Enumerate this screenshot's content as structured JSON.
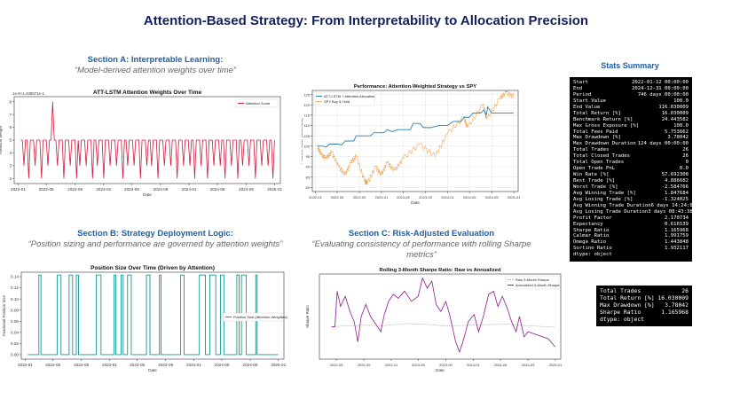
{
  "title": "Attention-Based Strategy: From Interpretability to Allocation Precision",
  "sections": {
    "a": {
      "heading": "Section A: Interpretable Learning:",
      "subtitle": "“Model-derived attention weights over time”"
    },
    "b": {
      "heading": "Section B: Strategy Deployment Logic:",
      "subtitle": "“Position sizing and performance are governed by attention weights”"
    },
    "c": {
      "heading": "Section C: Risk-Adjusted Evaluation",
      "subtitle_line1": "“Evaluating consistency of performance with rolling Sharpe",
      "subtitle_line2": "metrics”"
    }
  },
  "stats_summary": {
    "heading": "Stats Summary",
    "rows": [
      [
        "Start",
        "2022-01-12 00:00:00"
      ],
      [
        "End",
        "2024-12-31 00:00:00"
      ],
      [
        "Period",
        "746 days 00:00:00"
      ],
      [
        "Start Value",
        "100.0"
      ],
      [
        "End Value",
        "116.030009"
      ],
      [
        "Total Return [%]",
        "16.030009"
      ],
      [
        "Benchmark Return [%]",
        "24.443582"
      ],
      [
        "Max Gross Exposure [%]",
        "100.0"
      ],
      [
        "Total Fees Paid",
        "5.753662"
      ],
      [
        "Max Drawdown [%]",
        "3.78042"
      ],
      [
        "Max Drawdown Duration",
        "124 days 00:00:00"
      ],
      [
        "Total Trades",
        "26"
      ],
      [
        "Total Closed Trades",
        "26"
      ],
      [
        "Total Open Trades",
        "0"
      ],
      [
        "Open Trade PnL",
        "0.0"
      ],
      [
        "Win Rate [%]",
        "57.692308"
      ],
      [
        "Best Trade [%]",
        "4.886682"
      ],
      [
        "Worst Trade [%]",
        "-2.584766"
      ],
      [
        "Avg Winning Trade [%]",
        "1.847684"
      ],
      [
        "Avg Losing Trade [%]",
        "-1.324025"
      ],
      [
        "Avg Winning Trade Duration",
        "6 days 14:24:00"
      ],
      [
        "Avg Losing Trade Duration",
        "3 days 08:43:38.181818181"
      ],
      [
        "Profit Factor",
        "2.170734"
      ],
      [
        "Expectancy",
        "0.616539"
      ],
      [
        "Sharpe Ratio",
        "1.165968"
      ],
      [
        "Calmar Ratio",
        "1.991759"
      ],
      [
        "Omega Ratio",
        "1.443848"
      ],
      [
        "Sortino Ratio",
        "1.932117"
      ],
      [
        "dtype: object",
        ""
      ]
    ]
  },
  "key_stats": {
    "rows": [
      [
        "Total Trades",
        "26"
      ],
      [
        "Total Return [%]",
        "16.030009"
      ],
      [
        "Max Drawdown [%]",
        "3.78042"
      ],
      [
        "Sharpe Ratio",
        "1.165968"
      ],
      [
        "dtype: object",
        ""
      ]
    ]
  },
  "colors": {
    "title": "#13205b",
    "section_heading": "#1f5fa6",
    "attention": "#d11b3c",
    "strategy": "#2f7db3",
    "spy": "#f0922b",
    "position": "#13978f",
    "sharpe_raw": "#9aa0a6",
    "sharpe_ann": "#8e1a8c"
  },
  "chart_data": [
    {
      "id": "attention",
      "type": "line",
      "title": "ATT-LSTM Attention Weights Over Time",
      "xlabel": "Date",
      "ylabel": "Attention Weight",
      "offset_label": "1e-8+1.428571e-1",
      "legend": [
        "Attention Score"
      ],
      "x_ticks": [
        "2022-01",
        "2022-05",
        "2022-09",
        "2023-01",
        "2023-05",
        "2023-09",
        "2024-01",
        "2024-05",
        "2024-09",
        "2025-01"
      ],
      "y_ticks": [
        "2",
        "3",
        "4",
        "5",
        "6",
        "7",
        "8"
      ],
      "ylim": [
        1.6,
        8.4
      ],
      "x_range": [
        "2021-12-15",
        "2025-01-25"
      ],
      "series": [
        {
          "name": "Attention Score",
          "values": [
            5,
            5,
            3,
            5,
            5,
            2,
            5,
            5,
            5,
            3,
            5,
            5,
            5,
            2,
            5,
            5,
            5,
            3,
            5,
            5,
            8,
            5,
            5,
            3,
            5,
            5,
            5,
            2,
            5,
            5,
            5,
            3,
            5,
            5,
            5,
            2,
            5,
            3,
            5,
            5,
            5,
            3,
            5,
            5,
            5,
            2,
            5,
            5,
            3,
            5,
            5,
            5,
            2,
            5,
            5,
            5,
            3,
            5,
            5,
            5,
            3,
            5,
            5,
            5,
            2,
            5,
            5,
            3,
            5,
            5,
            5,
            3,
            5,
            5,
            5,
            2,
            5,
            5,
            5,
            3,
            5,
            5,
            3,
            5,
            5,
            5,
            2,
            5,
            5,
            5,
            3,
            5,
            5,
            5,
            3,
            5,
            5,
            5,
            2,
            5,
            5,
            5,
            3,
            5,
            5,
            5,
            3,
            5,
            5,
            2,
            5,
            5,
            5,
            3,
            5,
            5,
            5,
            2,
            5,
            5,
            5,
            3,
            5,
            5,
            5,
            3,
            5,
            5,
            2,
            5,
            5,
            5,
            3,
            5,
            5,
            5,
            2,
            5,
            5,
            3,
            5,
            5,
            5,
            3,
            5,
            5,
            5,
            2,
            5,
            5,
            5,
            3,
            5,
            5,
            5,
            3,
            5,
            5,
            2,
            5
          ]
        }
      ]
    },
    {
      "id": "performance",
      "type": "line",
      "title": "Performance: Attention-Weighted Strategy vs SPY",
      "xlabel": "Date",
      "ylabel": "Portfolio Value (Start=100)",
      "legend": [
        "ATT-LSTM + Attention Allocation",
        "SPY Buy & Hold"
      ],
      "x_ticks": [
        "2022-01",
        "2022-05",
        "2022-09",
        "2023-01",
        "2023-05",
        "2023-09",
        "2024-01",
        "2024-05",
        "2024-09",
        "2025-01"
      ],
      "y_ticks": [
        "80",
        "85",
        "90",
        "95",
        "100",
        "105",
        "110",
        "115",
        "120",
        "125"
      ],
      "ylim": [
        78,
        127
      ],
      "x_range": [
        "2021-12-15",
        "2025-01-25"
      ],
      "series": [
        {
          "name": "ATT-LSTM + Attention Allocation",
          "points": [
            [
              "2022-01-12",
              100
            ],
            [
              "2022-02-15",
              100
            ],
            [
              "2022-03-01",
              99.5
            ],
            [
              "2022-03-20",
              101
            ],
            [
              "2022-05-10",
              101
            ],
            [
              "2022-05-25",
              100.5
            ],
            [
              "2022-06-15",
              102.5
            ],
            [
              "2022-08-01",
              102.5
            ],
            [
              "2022-08-15",
              105
            ],
            [
              "2022-11-01",
              105
            ],
            [
              "2022-11-20",
              106.5
            ],
            [
              "2023-01-15",
              106.5
            ],
            [
              "2023-02-01",
              108
            ],
            [
              "2023-03-01",
              107
            ],
            [
              "2023-04-01",
              108
            ],
            [
              "2023-06-10",
              108
            ],
            [
              "2023-06-25",
              111
            ],
            [
              "2023-08-01",
              111
            ],
            [
              "2023-08-20",
              109
            ],
            [
              "2023-10-01",
              109
            ],
            [
              "2023-11-15",
              110
            ],
            [
              "2024-01-01",
              110
            ],
            [
              "2024-02-01",
              112
            ],
            [
              "2024-03-15",
              112
            ],
            [
              "2024-04-01",
              114
            ],
            [
              "2024-05-01",
              114
            ],
            [
              "2024-05-20",
              116
            ],
            [
              "2024-07-01",
              116
            ],
            [
              "2024-07-20",
              117.5
            ],
            [
              "2024-08-01",
              115
            ],
            [
              "2024-08-10",
              119
            ],
            [
              "2024-09-01",
              116
            ],
            [
              "2024-12-31",
              116
            ]
          ]
        },
        {
          "name": "SPY Buy & Hold",
          "points": [
            [
              "2022-01-12",
              100
            ],
            [
              "2022-02-01",
              96
            ],
            [
              "2022-03-01",
              94
            ],
            [
              "2022-04-01",
              97
            ],
            [
              "2022-05-10",
              90
            ],
            [
              "2022-06-15",
              86
            ],
            [
              "2022-07-15",
              92
            ],
            [
              "2022-08-15",
              95
            ],
            [
              "2022-09-30",
              83
            ],
            [
              "2022-10-15",
              82
            ],
            [
              "2022-11-30",
              90
            ],
            [
              "2022-12-31",
              86
            ],
            [
              "2023-02-01",
              92
            ],
            [
              "2023-03-15",
              88
            ],
            [
              "2023-05-01",
              94
            ],
            [
              "2023-07-31",
              101
            ],
            [
              "2023-10-25",
              95
            ],
            [
              "2023-12-31",
              106
            ],
            [
              "2024-03-31",
              114
            ],
            [
              "2024-04-20",
              109
            ],
            [
              "2024-07-15",
              120
            ],
            [
              "2024-08-05",
              113
            ],
            [
              "2024-10-15",
              123
            ],
            [
              "2024-11-20",
              126
            ],
            [
              "2024-12-31",
              124
            ]
          ]
        }
      ]
    },
    {
      "id": "position",
      "type": "line",
      "title": "Position Size Over Time (Driven by Attention)",
      "xlabel": "Date",
      "ylabel": "Fractional Position Size",
      "legend": [
        "Position Size (Attention-Weighted)"
      ],
      "x_ticks": [
        "2022-01",
        "2022-05",
        "2022-09",
        "2023-01",
        "2023-05",
        "2023-09",
        "2024-01",
        "2024-05",
        "2024-09",
        "2025-01"
      ],
      "y_ticks": [
        "0.00",
        "0.02",
        "0.04",
        "0.06",
        "0.08",
        "0.10",
        "0.12",
        "0.14"
      ],
      "ylim": [
        -0.008,
        0.148
      ],
      "x_range": [
        "2021-12-15",
        "2025-01-25"
      ],
      "series": [
        {
          "name": "Position Size (Attention-Weighted)",
          "high": 0.1429,
          "intervals": [
            [
              "2022-03-01",
              "2022-03-10"
            ],
            [
              "2022-05-20",
              "2022-06-05"
            ],
            [
              "2022-07-10",
              "2022-07-25"
            ],
            [
              "2022-08-10",
              "2022-08-20"
            ],
            [
              "2022-11-05",
              "2022-11-25"
            ],
            [
              "2023-01-20",
              "2023-01-28"
            ],
            [
              "2023-02-20",
              "2023-03-01"
            ],
            [
              "2023-03-20",
              "2023-04-05"
            ],
            [
              "2023-06-10",
              "2023-06-25"
            ],
            [
              "2023-08-05",
              "2023-08-12"
            ],
            [
              "2023-11-05",
              "2023-11-20"
            ],
            [
              "2024-01-25",
              "2024-02-20"
            ],
            [
              "2024-03-10",
              "2024-04-05"
            ],
            [
              "2024-04-25",
              "2024-05-10"
            ],
            [
              "2024-07-05",
              "2024-07-15"
            ],
            [
              "2024-07-25",
              "2024-08-15"
            ],
            [
              "2024-09-25",
              "2024-10-01"
            ]
          ]
        }
      ]
    },
    {
      "id": "sharpe",
      "type": "line",
      "title": "Rolling 3-Month Sharpe Ratio: Raw vs Annualized",
      "xlabel": "Date",
      "ylabel": "Sharpe Ratio",
      "legend": [
        "Raw 3-Month Sharpe",
        "Annualized 3-Month Sharpe"
      ],
      "x_ticks": [
        "2022-05",
        "2022-09",
        "2023-01",
        "2023-05",
        "2023-09",
        "2024-01",
        "2024-05",
        "2024-09",
        "2025-01"
      ],
      "ylim": [
        -3.2,
        5.2
      ],
      "x_range": [
        "2022-02-15",
        "2025-01-25"
      ],
      "series": [
        {
          "name": "Raw 3-Month Sharpe",
          "points": [
            [
              "2022-04-10",
              0
            ],
            [
              "2022-06-15",
              0.08
            ],
            [
              "2022-09-01",
              0.15
            ],
            [
              "2022-12-01",
              0.1
            ],
            [
              "2023-03-01",
              0.3
            ],
            [
              "2023-06-01",
              0.25
            ],
            [
              "2023-09-01",
              0.05
            ],
            [
              "2023-12-01",
              0.15
            ],
            [
              "2024-03-01",
              0.2
            ],
            [
              "2024-06-01",
              0.25
            ],
            [
              "2024-09-01",
              0.1
            ],
            [
              "2024-12-31",
              -0.05
            ]
          ]
        },
        {
          "name": "Annualized 3-Month Sharpe",
          "points": [
            [
              "2022-04-10",
              0
            ],
            [
              "2022-04-25",
              0
            ],
            [
              "2022-05-05",
              3.5
            ],
            [
              "2022-05-20",
              2.0
            ],
            [
              "2022-06-10",
              3.0
            ],
            [
              "2022-07-01",
              1.5
            ],
            [
              "2022-07-20",
              0.5
            ],
            [
              "2022-08-05",
              -1.5
            ],
            [
              "2022-08-20",
              1.0
            ],
            [
              "2022-09-10",
              2.2
            ],
            [
              "2022-10-01",
              1.0
            ],
            [
              "2022-11-01",
              0
            ],
            [
              "2022-11-15",
              -0.5
            ],
            [
              "2022-12-01",
              1.2
            ],
            [
              "2022-12-20",
              2.5
            ],
            [
              "2023-01-10",
              3.2
            ],
            [
              "2023-02-01",
              2.8
            ],
            [
              "2023-03-01",
              3.5
            ],
            [
              "2023-04-01",
              2.5
            ],
            [
              "2023-05-01",
              3.0
            ],
            [
              "2023-05-20",
              4.8
            ],
            [
              "2023-06-10",
              3.8
            ],
            [
              "2023-07-01",
              4.5
            ],
            [
              "2023-07-20",
              2.2
            ],
            [
              "2023-08-10",
              1.5
            ],
            [
              "2023-09-01",
              2.5
            ],
            [
              "2023-09-20",
              1.0
            ],
            [
              "2023-10-15",
              -1.5
            ],
            [
              "2023-11-01",
              -2.5
            ],
            [
              "2023-11-20",
              -1.2
            ],
            [
              "2023-12-10",
              0.5
            ],
            [
              "2024-01-05",
              1.2
            ],
            [
              "2024-01-25",
              -0.5
            ],
            [
              "2024-02-15",
              1.0
            ],
            [
              "2024-03-10",
              3.2
            ],
            [
              "2024-04-01",
              3.5
            ],
            [
              "2024-04-20",
              2.0
            ],
            [
              "2024-05-10",
              3.0
            ],
            [
              "2024-06-01",
              1.8
            ],
            [
              "2024-06-20",
              0.5
            ],
            [
              "2024-07-10",
              -0.5
            ],
            [
              "2024-07-25",
              1.0
            ],
            [
              "2024-08-15",
              -1.0
            ],
            [
              "2024-09-01",
              -0.5
            ],
            [
              "2024-12-01",
              -1.2
            ],
            [
              "2024-12-31",
              -2.0
            ]
          ]
        }
      ]
    }
  ]
}
